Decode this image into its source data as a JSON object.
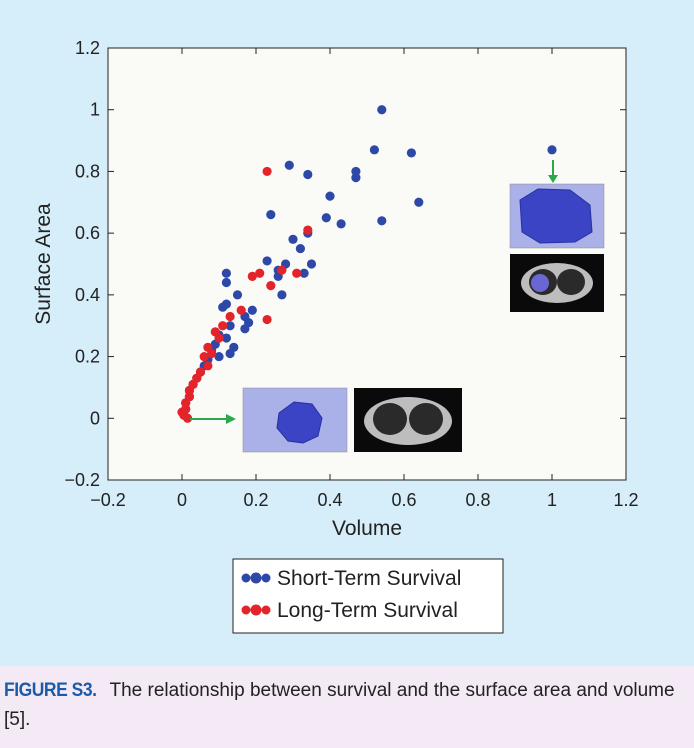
{
  "caption": {
    "figure_label": "FIGURE S3.",
    "text": " The relationship between survival and the surface area and volume [5]."
  },
  "colors": {
    "panel_bg": "#d6eef9",
    "plot_bg": "#fafbf6",
    "short_term": "#2e48a8",
    "long_term": "#e3242b",
    "arrow": "#2aa84a",
    "caption_label": "#1d5aa8"
  },
  "chart_data": {
    "type": "scatter",
    "title": "",
    "xlabel": "Volume",
    "ylabel": "Surface Area",
    "xlim": [
      -0.2,
      1.2
    ],
    "ylim": [
      -0.2,
      1.2
    ],
    "xticks": [
      -0.2,
      0,
      0.2,
      0.4,
      0.6,
      0.8,
      1,
      1.2
    ],
    "xtick_labels": [
      "−0.2",
      "0",
      "0.2",
      "0.4",
      "0.6",
      "0.8",
      "1",
      "1.2"
    ],
    "yticks": [
      -0.2,
      0,
      0.2,
      0.4,
      0.6,
      0.8,
      1,
      1.2
    ],
    "ytick_labels": [
      "−0.2",
      "0",
      "0.2",
      "0.4",
      "0.6",
      "0.8",
      "1",
      "1.2"
    ],
    "grid": false,
    "legend_position": "bottom-center",
    "series": [
      {
        "name": "Short-Term Survival",
        "color": "#2e48a8",
        "points": [
          [
            1.0,
            0.87
          ],
          [
            0.54,
            1.0
          ],
          [
            0.52,
            0.87
          ],
          [
            0.62,
            0.86
          ],
          [
            0.64,
            0.7
          ],
          [
            0.54,
            0.64
          ],
          [
            0.47,
            0.8
          ],
          [
            0.47,
            0.78
          ],
          [
            0.4,
            0.72
          ],
          [
            0.39,
            0.65
          ],
          [
            0.43,
            0.63
          ],
          [
            0.34,
            0.79
          ],
          [
            0.29,
            0.82
          ],
          [
            0.24,
            0.66
          ],
          [
            0.34,
            0.6
          ],
          [
            0.3,
            0.58
          ],
          [
            0.32,
            0.55
          ],
          [
            0.35,
            0.5
          ],
          [
            0.33,
            0.47
          ],
          [
            0.28,
            0.5
          ],
          [
            0.26,
            0.48
          ],
          [
            0.26,
            0.46
          ],
          [
            0.23,
            0.51
          ],
          [
            0.27,
            0.4
          ],
          [
            0.12,
            0.47
          ],
          [
            0.12,
            0.44
          ],
          [
            0.15,
            0.4
          ],
          [
            0.12,
            0.37
          ],
          [
            0.11,
            0.36
          ],
          [
            0.19,
            0.35
          ],
          [
            0.17,
            0.33
          ],
          [
            0.18,
            0.31
          ],
          [
            0.13,
            0.3
          ],
          [
            0.17,
            0.29
          ],
          [
            0.1,
            0.27
          ],
          [
            0.12,
            0.26
          ],
          [
            0.09,
            0.24
          ],
          [
            0.08,
            0.22
          ],
          [
            0.14,
            0.23
          ],
          [
            0.13,
            0.21
          ],
          [
            0.1,
            0.2
          ],
          [
            0.07,
            0.19
          ],
          [
            0.06,
            0.17
          ],
          [
            0.05,
            0.15
          ],
          [
            0.04,
            0.13
          ],
          [
            0.03,
            0.11
          ],
          [
            0.02,
            0.09
          ],
          [
            0.02,
            0.07
          ],
          [
            0.01,
            0.05
          ],
          [
            0.01,
            0.03
          ],
          [
            0.005,
            0.02
          ]
        ]
      },
      {
        "name": "Long-Term Survival",
        "color": "#e3242b",
        "points": [
          [
            0.23,
            0.8
          ],
          [
            0.34,
            0.61
          ],
          [
            0.31,
            0.47
          ],
          [
            0.21,
            0.47
          ],
          [
            0.19,
            0.46
          ],
          [
            0.27,
            0.48
          ],
          [
            0.24,
            0.43
          ],
          [
            0.23,
            0.32
          ],
          [
            0.16,
            0.35
          ],
          [
            0.13,
            0.33
          ],
          [
            0.11,
            0.3
          ],
          [
            0.09,
            0.28
          ],
          [
            0.1,
            0.26
          ],
          [
            0.07,
            0.23
          ],
          [
            0.08,
            0.21
          ],
          [
            0.06,
            0.2
          ],
          [
            0.07,
            0.17
          ],
          [
            0.05,
            0.15
          ],
          [
            0.04,
            0.13
          ],
          [
            0.03,
            0.11
          ],
          [
            0.02,
            0.09
          ],
          [
            0.02,
            0.07
          ],
          [
            0.01,
            0.05
          ],
          [
            0.01,
            0.03
          ],
          [
            0.005,
            0.01
          ],
          [
            0.0,
            0.02
          ],
          [
            0.015,
            0.0
          ]
        ]
      }
    ]
  }
}
